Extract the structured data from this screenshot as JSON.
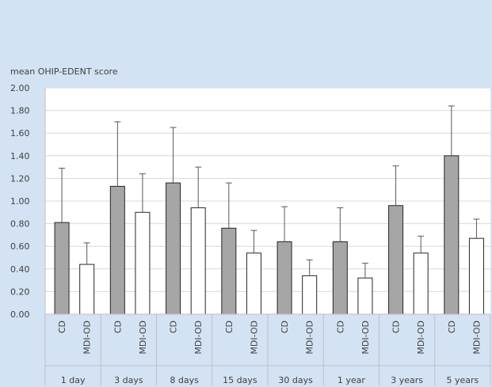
{
  "chart_data": {
    "type": "bar",
    "ylabel": "mean OHIP-EDENT score",
    "ylim": [
      0,
      2.0
    ],
    "yticks": [
      "0.00",
      "0.20",
      "0.40",
      "0.60",
      "0.80",
      "1.00",
      "1.20",
      "1.40",
      "1.60",
      "1.80",
      "2.00"
    ],
    "ytick_values": [
      0,
      0.2,
      0.4,
      0.6,
      0.8,
      1.0,
      1.2,
      1.4,
      1.6,
      1.8,
      2.0
    ],
    "grid": true,
    "groups": [
      "1 day",
      "3 days",
      "8 days",
      "15 days",
      "30 days",
      "1 year",
      "3 years",
      "5 years"
    ],
    "series": [
      {
        "name": "CD",
        "color": "#a6a6a6",
        "values": [
          0.81,
          1.13,
          1.16,
          0.76,
          0.64,
          0.64,
          0.96,
          1.4
        ],
        "error_upper": [
          1.29,
          1.7,
          1.65,
          1.16,
          0.95,
          0.94,
          1.31,
          1.84
        ]
      },
      {
        "name": "MDI-OD",
        "color": "#ffffff",
        "values": [
          0.44,
          0.9,
          0.94,
          0.54,
          0.34,
          0.32,
          0.54,
          0.67
        ],
        "error_upper": [
          0.63,
          1.24,
          1.3,
          0.74,
          0.48,
          0.45,
          0.69,
          0.84
        ]
      }
    ]
  }
}
